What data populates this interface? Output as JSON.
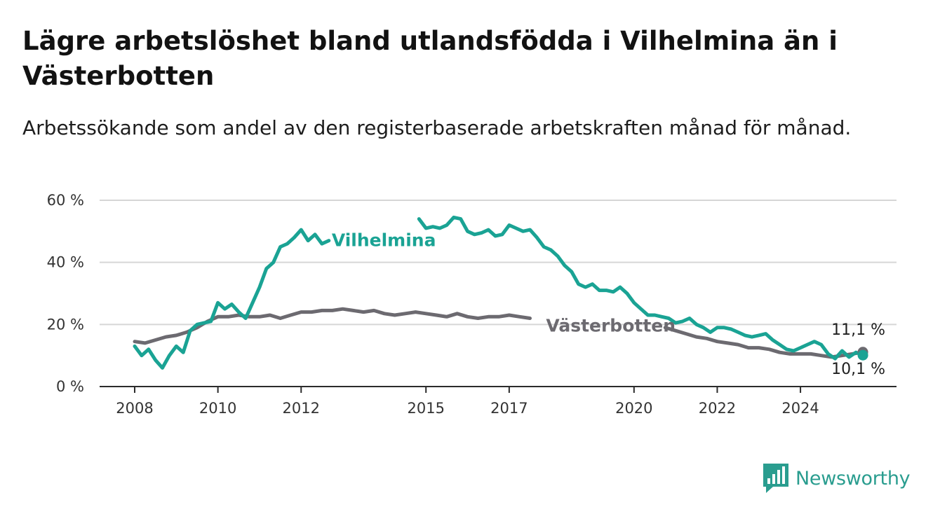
{
  "header": {
    "title": "Lägre arbetslöshet bland utlandsfödda i Vilhelmina än i Västerbotten",
    "subtitle": "Arbetssökande som andel av den registerbaserade arbetskraften månad för månad."
  },
  "brand": {
    "name": "Newsworthy",
    "icon": "bar-chart-logo-icon",
    "color": "#2a9d8f"
  },
  "chart_data": {
    "type": "line",
    "title": "Lägre arbetslöshet bland utlandsfödda i Vilhelmina än i Västerbotten",
    "subtitle": "Arbetssökande som andel av den registerbaserade arbetskraften månad för månad.",
    "xlabel": "",
    "ylabel": "",
    "x_range": [
      "2008-01",
      "2025-08"
    ],
    "ylim": [
      0,
      60
    ],
    "x_ticks": [
      {
        "date": "2008-01",
        "label": "2008"
      },
      {
        "date": "2010-01",
        "label": "2010"
      },
      {
        "date": "2012-01",
        "label": "2012"
      },
      {
        "date": "2015-01",
        "label": "2015"
      },
      {
        "date": "2017-01",
        "label": "2017"
      },
      {
        "date": "2020-01",
        "label": "2020"
      },
      {
        "date": "2022-01",
        "label": "2022"
      },
      {
        "date": "2024-01",
        "label": "2024"
      }
    ],
    "y_ticks": [
      {
        "value": 0,
        "label": "0 %"
      },
      {
        "value": 20,
        "label": "20 %"
      },
      {
        "value": 40,
        "label": "40 %"
      },
      {
        "value": 60,
        "label": "60 %"
      }
    ],
    "grid": "horizontal",
    "series": [
      {
        "name": "Vilhelmina",
        "color": "#1aa394",
        "end_value_label": "10,1 %",
        "points": [
          [
            "2008-01",
            13
          ],
          [
            "2008-03",
            10
          ],
          [
            "2008-05",
            12
          ],
          [
            "2008-07",
            8.5
          ],
          [
            "2008-09",
            6
          ],
          [
            "2008-11",
            10
          ],
          [
            "2009-01",
            13
          ],
          [
            "2009-03",
            11
          ],
          [
            "2009-05",
            18
          ],
          [
            "2009-07",
            20
          ],
          [
            "2009-09",
            20.5
          ],
          [
            "2009-11",
            21
          ],
          [
            "2010-01",
            27
          ],
          [
            "2010-03",
            25
          ],
          [
            "2010-05",
            26.5
          ],
          [
            "2010-07",
            24
          ],
          [
            "2010-09",
            22
          ],
          [
            "2010-11",
            27
          ],
          [
            "2011-01",
            32
          ],
          [
            "2011-03",
            38
          ],
          [
            "2011-05",
            40
          ],
          [
            "2011-07",
            45
          ],
          [
            "2011-09",
            46
          ],
          [
            "2011-11",
            48
          ],
          [
            "2012-01",
            50.5
          ],
          [
            "2012-03",
            47
          ],
          [
            "2012-05",
            49
          ],
          [
            "2012-07",
            46
          ],
          [
            "2012-09",
            47
          ],
          [
            "2014-11",
            54
          ],
          [
            "2015-01",
            51
          ],
          [
            "2015-03",
            51.5
          ],
          [
            "2015-05",
            51
          ],
          [
            "2015-07",
            52
          ],
          [
            "2015-09",
            54.5
          ],
          [
            "2015-11",
            54
          ],
          [
            "2016-01",
            50
          ],
          [
            "2016-03",
            49
          ],
          [
            "2016-05",
            49.5
          ],
          [
            "2016-07",
            50.5
          ],
          [
            "2016-09",
            48.5
          ],
          [
            "2016-11",
            49
          ],
          [
            "2017-01",
            52
          ],
          [
            "2017-03",
            51
          ],
          [
            "2017-05",
            50
          ],
          [
            "2017-07",
            50.5
          ],
          [
            "2017-09",
            48
          ],
          [
            "2017-11",
            45
          ],
          [
            "2018-01",
            44
          ],
          [
            "2018-03",
            42
          ],
          [
            "2018-05",
            39
          ],
          [
            "2018-07",
            37
          ],
          [
            "2018-09",
            33
          ],
          [
            "2018-11",
            32
          ],
          [
            "2019-01",
            33
          ],
          [
            "2019-03",
            31
          ],
          [
            "2019-05",
            31
          ],
          [
            "2019-07",
            30.5
          ],
          [
            "2019-09",
            32
          ],
          [
            "2019-11",
            30
          ],
          [
            "2020-01",
            27
          ],
          [
            "2020-03",
            25
          ],
          [
            "2020-05",
            23
          ],
          [
            "2020-07",
            23
          ],
          [
            "2020-09",
            22.5
          ],
          [
            "2020-11",
            22
          ],
          [
            "2021-01",
            20.5
          ],
          [
            "2021-03",
            21
          ],
          [
            "2021-05",
            22
          ],
          [
            "2021-07",
            20
          ],
          [
            "2021-09",
            19
          ],
          [
            "2021-11",
            17.5
          ],
          [
            "2022-01",
            19
          ],
          [
            "2022-03",
            19
          ],
          [
            "2022-05",
            18.5
          ],
          [
            "2022-07",
            17.5
          ],
          [
            "2022-09",
            16.5
          ],
          [
            "2022-11",
            16
          ],
          [
            "2023-01",
            16.5
          ],
          [
            "2023-03",
            17
          ],
          [
            "2023-05",
            15
          ],
          [
            "2023-07",
            13.5
          ],
          [
            "2023-09",
            12
          ],
          [
            "2023-11",
            11.5
          ],
          [
            "2024-01",
            12.5
          ],
          [
            "2024-03",
            13.5
          ],
          [
            "2024-05",
            14.5
          ],
          [
            "2024-07",
            13.5
          ],
          [
            "2024-09",
            10.5
          ],
          [
            "2024-11",
            9
          ],
          [
            "2025-01",
            11.5
          ],
          [
            "2025-03",
            9.5
          ],
          [
            "2025-05",
            11
          ],
          [
            "2025-07",
            10.1
          ]
        ]
      },
      {
        "name": "Västerbotten",
        "color": "#6c6a70",
        "end_value_label": "11,1 %",
        "points": [
          [
            "2008-01",
            14.5
          ],
          [
            "2008-04",
            14
          ],
          [
            "2008-07",
            15
          ],
          [
            "2008-10",
            16
          ],
          [
            "2009-01",
            16.5
          ],
          [
            "2009-04",
            17.5
          ],
          [
            "2009-07",
            19
          ],
          [
            "2009-10",
            21
          ],
          [
            "2010-01",
            22.5
          ],
          [
            "2010-04",
            22.5
          ],
          [
            "2010-07",
            23
          ],
          [
            "2010-10",
            22.5
          ],
          [
            "2011-01",
            22.5
          ],
          [
            "2011-04",
            23
          ],
          [
            "2011-07",
            22
          ],
          [
            "2011-10",
            23
          ],
          [
            "2012-01",
            24
          ],
          [
            "2012-04",
            24
          ],
          [
            "2012-07",
            24.5
          ],
          [
            "2012-10",
            24.5
          ],
          [
            "2013-01",
            25
          ],
          [
            "2013-04",
            24.5
          ],
          [
            "2013-07",
            24
          ],
          [
            "2013-10",
            24.5
          ],
          [
            "2014-01",
            23.5
          ],
          [
            "2014-04",
            23
          ],
          [
            "2014-07",
            23.5
          ],
          [
            "2014-10",
            24
          ],
          [
            "2015-01",
            23.5
          ],
          [
            "2015-04",
            23
          ],
          [
            "2015-07",
            22.5
          ],
          [
            "2015-10",
            23.5
          ],
          [
            "2016-01",
            22.5
          ],
          [
            "2016-04",
            22
          ],
          [
            "2016-07",
            22.5
          ],
          [
            "2016-10",
            22.5
          ],
          [
            "2017-01",
            23
          ],
          [
            "2017-04",
            22.5
          ],
          [
            "2017-07",
            22
          ],
          [
            "2020-10",
            19
          ],
          [
            "2021-01",
            18
          ],
          [
            "2021-04",
            17
          ],
          [
            "2021-07",
            16
          ],
          [
            "2021-10",
            15.5
          ],
          [
            "2022-01",
            14.5
          ],
          [
            "2022-04",
            14
          ],
          [
            "2022-07",
            13.5
          ],
          [
            "2022-10",
            12.5
          ],
          [
            "2023-01",
            12.5
          ],
          [
            "2023-04",
            12
          ],
          [
            "2023-07",
            11
          ],
          [
            "2023-10",
            10.5
          ],
          [
            "2024-01",
            10.5
          ],
          [
            "2024-04",
            10.5
          ],
          [
            "2024-07",
            10
          ],
          [
            "2024-10",
            9.5
          ],
          [
            "2025-01",
            10
          ],
          [
            "2025-04",
            10.5
          ],
          [
            "2025-07",
            11.1
          ]
        ]
      }
    ]
  }
}
